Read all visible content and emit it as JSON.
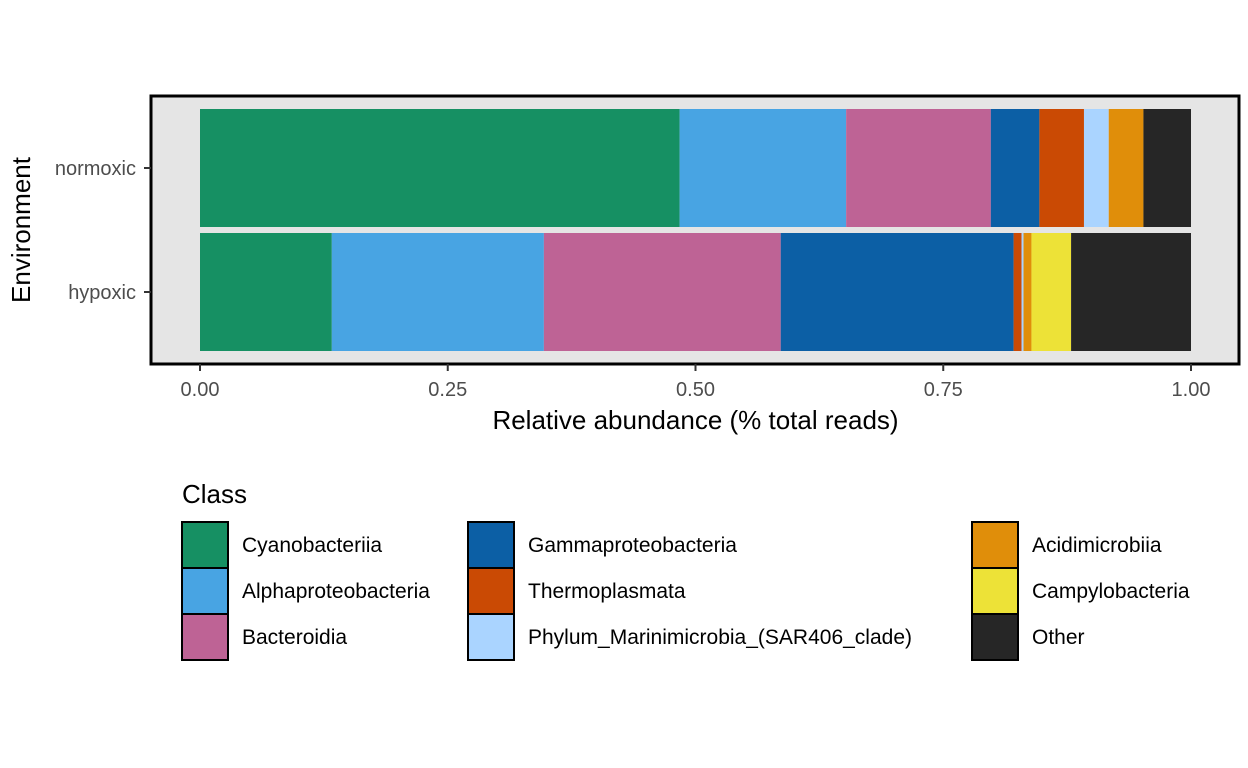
{
  "chart_data": {
    "type": "bar",
    "orientation": "horizontal",
    "stacked": true,
    "xlabel": "Relative abundance (% total reads)",
    "ylabel": "Environment",
    "xlim": [
      0,
      1
    ],
    "x_ticks": [
      "0.00",
      "0.25",
      "0.50",
      "0.75",
      "1.00"
    ],
    "categories": [
      "normoxic",
      "hypoxic"
    ],
    "legend_title": "Class",
    "legend_position": "bottom",
    "series": [
      {
        "name": "Cyanobacteriia",
        "color": "#169063",
        "values": [
          0.484,
          0.133
        ]
      },
      {
        "name": "Alphaproteobacteria",
        "color": "#48A4E3",
        "values": [
          0.168,
          0.214
        ]
      },
      {
        "name": "Bacteroidia",
        "color": "#BE6395",
        "values": [
          0.146,
          0.239
        ]
      },
      {
        "name": "Gammaproteobacteria",
        "color": "#0C5FA5",
        "values": [
          0.049,
          0.235
        ]
      },
      {
        "name": "Thermoplasmata",
        "color": "#CA4A04",
        "values": [
          0.045,
          0.008
        ]
      },
      {
        "name": "Phylum_Marinimicrobia_(SAR406_clade)",
        "color": "#AAD4FF",
        "values": [
          0.025,
          0.002
        ]
      },
      {
        "name": "Acidimicrobiia",
        "color": "#E08E0A",
        "values": [
          0.035,
          0.008
        ]
      },
      {
        "name": "Campylobacteria",
        "color": "#EDE237",
        "values": [
          0.0,
          0.04
        ]
      },
      {
        "name": "Other",
        "color": "#262626",
        "values": [
          0.048,
          0.121
        ]
      }
    ],
    "panel_background": "#E5E5E5",
    "grid": false
  }
}
